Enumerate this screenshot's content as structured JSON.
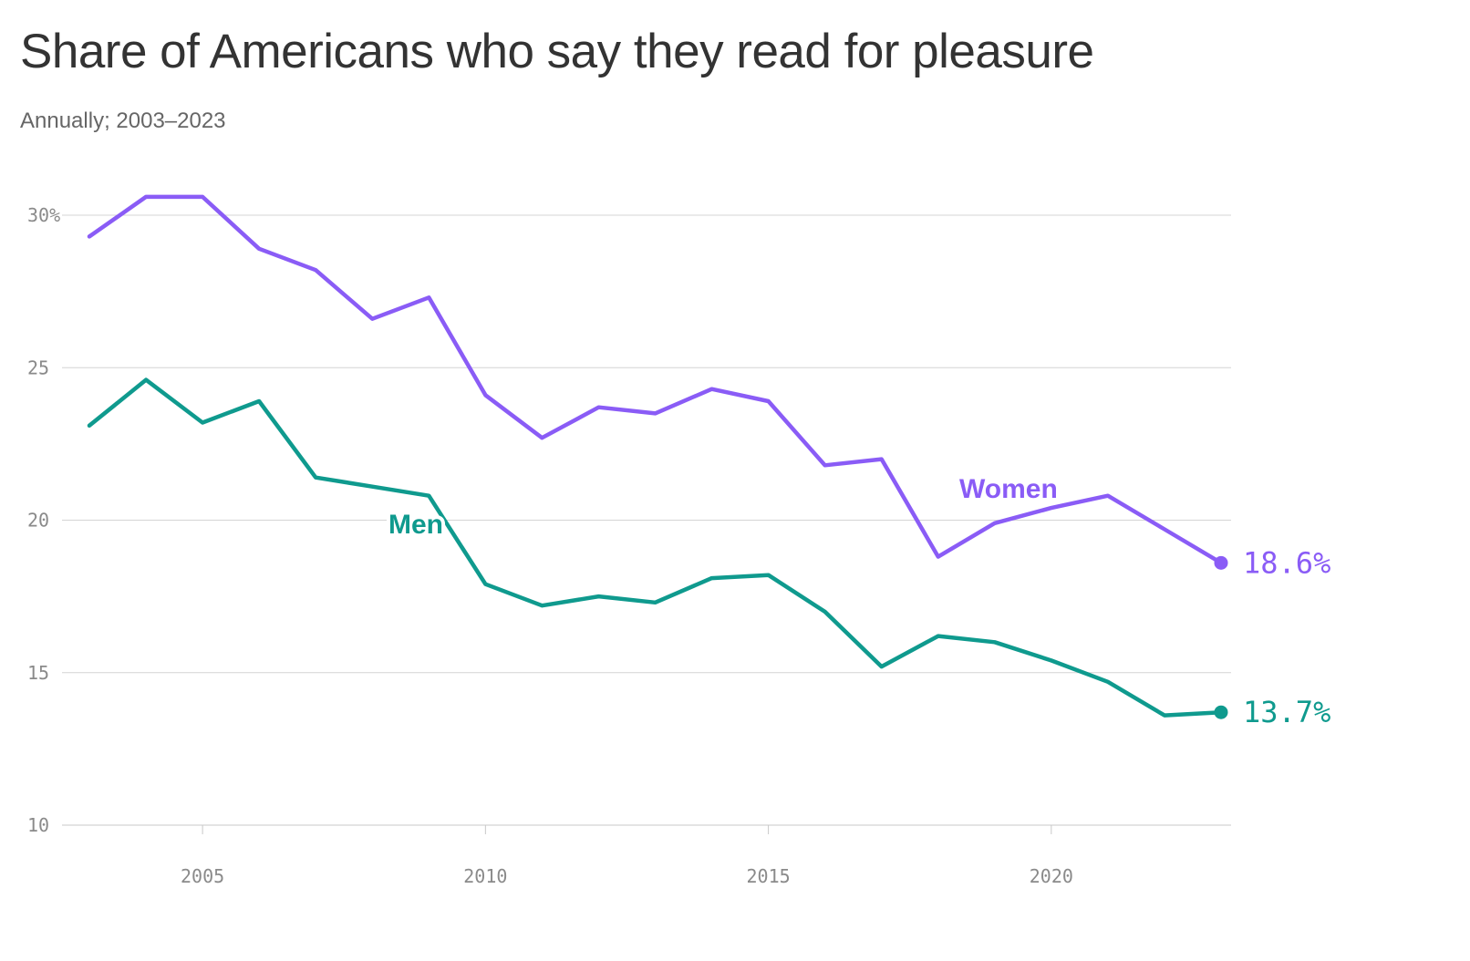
{
  "title": "Share of Americans who say they read for pleasure",
  "subtitle": "Annually; 2003–2023",
  "chart_data": {
    "type": "line",
    "title": "Share of Americans who say they read for pleasure",
    "subtitle": "Annually; 2003–2023",
    "xlabel": "",
    "ylabel": "",
    "xlim": [
      2003,
      2023
    ],
    "ylim": [
      10,
      31
    ],
    "x_ticks": [
      {
        "value": 2005,
        "label": "2005"
      },
      {
        "value": 2010,
        "label": "2010"
      },
      {
        "value": 2015,
        "label": "2015"
      },
      {
        "value": 2020,
        "label": "2020"
      }
    ],
    "y_ticks": [
      {
        "value": 10,
        "label": "10"
      },
      {
        "value": 15,
        "label": "15"
      },
      {
        "value": 20,
        "label": "20"
      },
      {
        "value": 25,
        "label": "25"
      },
      {
        "value": 30,
        "label": "30%"
      }
    ],
    "grid": true,
    "legend": "inline labels",
    "x": [
      2003,
      2004,
      2005,
      2006,
      2007,
      2008,
      2009,
      2010,
      2011,
      2012,
      2013,
      2014,
      2015,
      2016,
      2017,
      2018,
      2019,
      2020,
      2021,
      2022,
      2023
    ],
    "series": [
      {
        "name": "Women",
        "color": "#8a5cf6",
        "values": [
          29.3,
          30.6,
          30.6,
          28.9,
          28.2,
          26.6,
          27.3,
          24.1,
          22.7,
          23.7,
          23.5,
          24.3,
          23.9,
          21.8,
          22.0,
          18.8,
          19.9,
          20.4,
          20.8,
          19.7,
          18.6
        ],
        "end_label": "18.6%"
      },
      {
        "name": "Men",
        "color": "#0f9a8e",
        "values": [
          23.1,
          24.6,
          23.2,
          23.9,
          21.4,
          21.1,
          20.8,
          17.9,
          17.2,
          17.5,
          17.3,
          18.1,
          18.2,
          17.0,
          15.2,
          16.2,
          16.0,
          15.4,
          14.7,
          13.6,
          13.7
        ],
        "end_label": "13.7%"
      }
    ]
  }
}
